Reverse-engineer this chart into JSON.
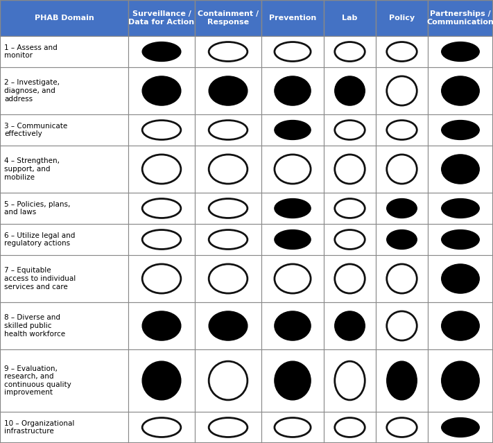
{
  "header_row": [
    "PHAB Domain",
    "Surveillance /\nData for Action",
    "Containment /\nResponse",
    "Prevention",
    "Lab",
    "Policy",
    "Partnerships /\nCommunication"
  ],
  "row_labels": [
    "1 – Assess and\nmonitor",
    "2 – Investigate,\ndiagnose, and\naddress",
    "3 – Communicate\neffectively",
    "4 – Strengthen,\nsupport, and\nmobilize",
    "5 – Policies, plans,\nand laws",
    "6 – Utilize legal and\nregulatory actions",
    "7 – Equitable\naccess to individual\nservices and care",
    "8 – Diverse and\nskilled public\nhealth workforce",
    "9 – Evaluation,\nresearch, and\ncontinuous quality\nimprovement",
    "10 – Organizational\ninfrastructure"
  ],
  "circle_data": [
    [
      1,
      0,
      0,
      0,
      0,
      1
    ],
    [
      1,
      1,
      1,
      1,
      0,
      1
    ],
    [
      0,
      0,
      1,
      0,
      0,
      1
    ],
    [
      0,
      0,
      0,
      0,
      0,
      1
    ],
    [
      0,
      0,
      1,
      0,
      1,
      1
    ],
    [
      0,
      0,
      1,
      0,
      1,
      1
    ],
    [
      0,
      0,
      0,
      0,
      0,
      1
    ],
    [
      1,
      1,
      1,
      1,
      0,
      1
    ],
    [
      1,
      0,
      1,
      0,
      1,
      1
    ],
    [
      0,
      0,
      0,
      0,
      0,
      1
    ]
  ],
  "header_bg_color": "#4472C4",
  "header_text_color": "#FFFFFF",
  "cell_bg_color": "#FFFFFF",
  "border_color": "#888888",
  "filled_circle_color": "#000000",
  "empty_circle_edge_color": "#111111",
  "text_color": "#000000",
  "figsize": [
    7.11,
    6.39
  ],
  "dpi": 100
}
